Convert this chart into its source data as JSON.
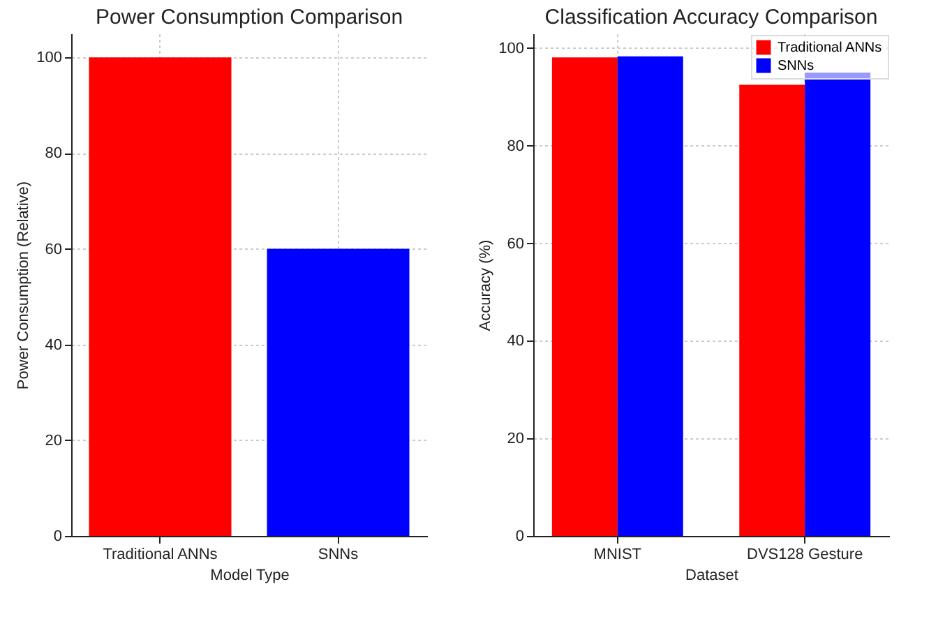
{
  "chart_data": [
    {
      "type": "bar",
      "title": "Power Consumption Comparison",
      "xlabel": "Model Type",
      "ylabel": "Power Consumption (Relative)",
      "categories": [
        "Traditional ANNs",
        "SNNs"
      ],
      "values": [
        100,
        60
      ],
      "colors": [
        "#ff0000",
        "#0000ff"
      ],
      "ylim": [
        0,
        105
      ],
      "yticks": [
        0,
        20,
        40,
        60,
        80,
        100
      ],
      "grid": true
    },
    {
      "type": "bar",
      "title": "Classification Accuracy Comparison",
      "xlabel": "Dataset",
      "ylabel": "Accuracy (%)",
      "categories": [
        "MNIST",
        "DVS128 Gesture"
      ],
      "series": [
        {
          "name": "Traditional ANNs",
          "color": "#ff0000",
          "values": [
            98.1,
            92.5
          ]
        },
        {
          "name": "SNNs",
          "color": "#0000ff",
          "values": [
            98.3,
            95.0
          ]
        }
      ],
      "ylim": [
        0,
        103
      ],
      "yticks": [
        0,
        20,
        40,
        60,
        80,
        100
      ],
      "grid": true,
      "legend": "top right"
    }
  ]
}
